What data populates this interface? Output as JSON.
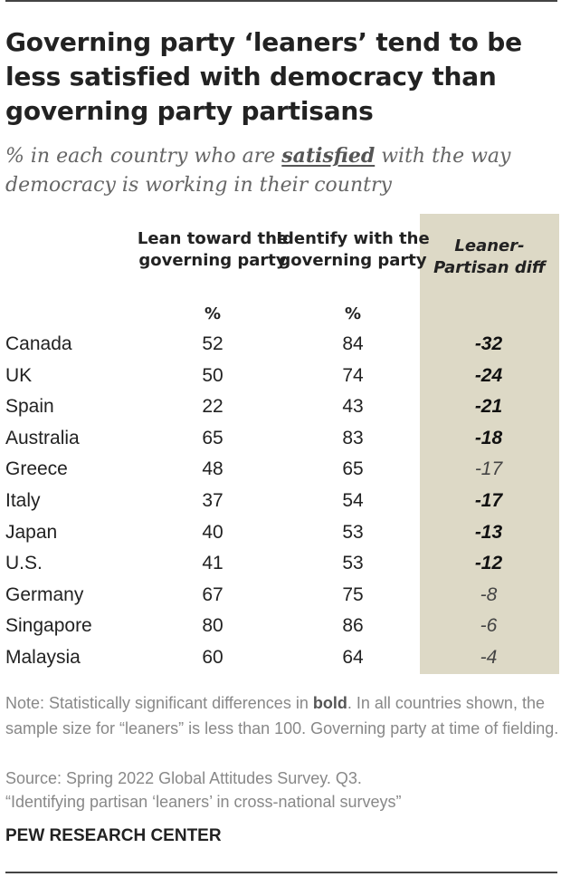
{
  "header": {
    "title": "Governing party ‘leaners’ tend to be less satisfied with democracy than governing party partisans",
    "subtitle_before": "% in each country who are ",
    "subtitle_emph": "satisfied",
    "subtitle_after": " with the way democracy is working in their country"
  },
  "chart_data": {
    "type": "table",
    "columns": [
      "Lean toward the governing party",
      "Identify with the governing party",
      "Leaner-Partisan diff"
    ],
    "unit_row": [
      "%",
      "%"
    ],
    "rows": [
      {
        "country": "Canada",
        "lean": 52,
        "identify": 84,
        "diff": "-32",
        "significant": true
      },
      {
        "country": "UK",
        "lean": 50,
        "identify": 74,
        "diff": "-24",
        "significant": true
      },
      {
        "country": "Spain",
        "lean": 22,
        "identify": 43,
        "diff": "-21",
        "significant": true
      },
      {
        "country": "Australia",
        "lean": 65,
        "identify": 83,
        "diff": "-18",
        "significant": true
      },
      {
        "country": "Greece",
        "lean": 48,
        "identify": 65,
        "diff": "-17",
        "significant": false
      },
      {
        "country": "Italy",
        "lean": 37,
        "identify": 54,
        "diff": "-17",
        "significant": true
      },
      {
        "country": "Japan",
        "lean": 40,
        "identify": 53,
        "diff": "-13",
        "significant": true
      },
      {
        "country": "U.S.",
        "lean": 41,
        "identify": 53,
        "diff": "-12",
        "significant": true
      },
      {
        "country": "Germany",
        "lean": 67,
        "identify": 75,
        "diff": "-8",
        "significant": false
      },
      {
        "country": "Singapore",
        "lean": 80,
        "identify": 86,
        "diff": "-6",
        "significant": false
      },
      {
        "country": "Malaysia",
        "lean": 60,
        "identify": 64,
        "diff": "-4",
        "significant": false
      }
    ]
  },
  "colors": {
    "diff_column_bg": "#ddd9c6",
    "text": "#222222",
    "note_text": "#888888"
  },
  "footer": {
    "note_before": "Note: Statistically significant differences in ",
    "note_bold": "bold",
    "note_after": ". In all countries shown, the sample size for “leaners” is less than 100. Governing party at time of fielding.",
    "source_line1": "Source: Spring 2022 Global Attitudes Survey. Q3.",
    "source_line2": "“Identifying partisan ‘leaners’ in cross-national surveys”",
    "brand": "PEW RESEARCH CENTER"
  }
}
